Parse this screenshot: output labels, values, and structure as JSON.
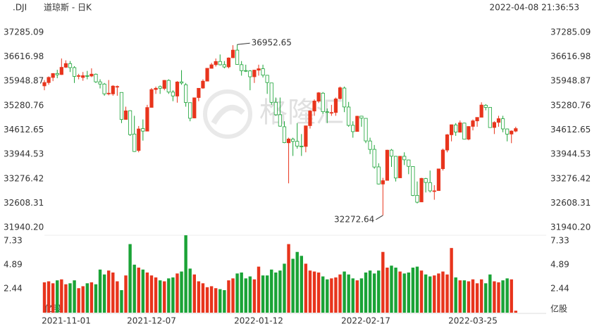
{
  "symbol": ".DJI",
  "timestamp": "2022-04-08 21:36:53",
  "chart_data": {
    "type": "candlestick",
    "title": "道琼斯 - 日K",
    "watermark": "格隆汇",
    "up_color": "#e8341c",
    "down_color": "#1aa336",
    "grid": false,
    "ylim": [
      31940.2,
      37285.09
    ],
    "yticks": [
      {
        "value": 31940.2,
        "label": "31940.20"
      },
      32608.31,
      33276.42,
      33944.53,
      34612.65,
      35280.76,
      35948.87,
      36616.98,
      37285.09
    ],
    "categories": [
      "2021-11-01",
      null,
      null,
      null,
      null,
      null,
      null,
      null,
      null,
      null,
      null,
      null,
      null,
      null,
      null,
      null,
      null,
      null,
      null,
      null,
      null,
      null,
      null,
      null,
      null,
      "2021-12-07",
      null,
      null,
      null,
      null,
      null,
      null,
      null,
      null,
      null,
      null,
      null,
      null,
      null,
      null,
      null,
      null,
      null,
      null,
      null,
      null,
      null,
      null,
      null,
      null,
      "2022-01-12",
      null,
      null,
      null,
      null,
      null,
      null,
      null,
      null,
      null,
      null,
      null,
      null,
      null,
      null,
      null,
      null,
      null,
      null,
      null,
      null,
      null,
      null,
      null,
      null,
      "2022-02-17",
      null,
      null,
      null,
      null,
      null,
      null,
      null,
      null,
      null,
      null,
      null,
      null,
      null,
      null,
      null,
      null,
      null,
      null,
      null,
      null,
      null,
      null,
      null,
      null,
      "2022-03-25",
      null,
      null,
      null,
      null,
      null,
      null,
      null,
      null,
      null,
      null
    ],
    "ohlc": [
      [
        35820,
        35980,
        35700,
        35913
      ],
      [
        35910,
        36080,
        35850,
        36053
      ],
      [
        36050,
        36170,
        35950,
        36158
      ],
      [
        36160,
        36260,
        36030,
        36124
      ],
      [
        36130,
        36570,
        36120,
        36328
      ],
      [
        36330,
        36520,
        36310,
        36432
      ],
      [
        36430,
        36500,
        36200,
        36320
      ],
      [
        36320,
        36360,
        35900,
        36079
      ],
      [
        36080,
        36150,
        36000,
        36100
      ],
      [
        36050,
        36200,
        35960,
        36100
      ],
      [
        36100,
        36230,
        36000,
        36087
      ],
      [
        36090,
        36300,
        36060,
        36142
      ],
      [
        36140,
        36160,
        35900,
        35931
      ],
      [
        35930,
        36000,
        35750,
        35871
      ],
      [
        35870,
        35900,
        35550,
        35602
      ],
      [
        35600,
        35980,
        35560,
        35620
      ],
      [
        35600,
        35840,
        35550,
        35814
      ],
      [
        35800,
        35830,
        35550,
        35804
      ],
      [
        35640,
        35640,
        34800,
        34899
      ],
      [
        34900,
        35250,
        34900,
        35136
      ],
      [
        35140,
        35150,
        34450,
        34484
      ],
      [
        34500,
        35000,
        34010,
        34022
      ],
      [
        34050,
        34720,
        34000,
        34640
      ],
      [
        34650,
        34900,
        34320,
        34580
      ],
      [
        34580,
        35300,
        34580,
        35227
      ],
      [
        35230,
        35760,
        35230,
        35719
      ],
      [
        35720,
        35800,
        35600,
        35754
      ],
      [
        35800,
        35830,
        35600,
        35754
      ],
      [
        35750,
        35980,
        35700,
        35971
      ],
      [
        35970,
        36000,
        35600,
        35650
      ],
      [
        35650,
        35700,
        35400,
        35544
      ],
      [
        35540,
        35950,
        35360,
        35927
      ],
      [
        35930,
        36250,
        35850,
        35898
      ],
      [
        35850,
        35900,
        35250,
        35365
      ],
      [
        35360,
        35360,
        34850,
        34932
      ],
      [
        34940,
        35500,
        34930,
        35493
      ],
      [
        35500,
        35760,
        35400,
        35754
      ],
      [
        35760,
        36000,
        35740,
        35950
      ],
      [
        35950,
        36300,
        35950,
        36302
      ],
      [
        36300,
        36450,
        36300,
        36398
      ],
      [
        36400,
        36570,
        36350,
        36488
      ],
      [
        36490,
        36680,
        36380,
        36398
      ],
      [
        36400,
        36500,
        36300,
        36338
      ],
      [
        36340,
        36600,
        36300,
        36585
      ],
      [
        36590,
        36935,
        36590,
        36800
      ],
      [
        36800,
        36952.65,
        36400,
        36408
      ],
      [
        36400,
        36500,
        36100,
        36236
      ],
      [
        36240,
        36400,
        36200,
        36232
      ],
      [
        36230,
        36250,
        35700,
        36069
      ],
      [
        36070,
        36260,
        35900,
        36252
      ],
      [
        36250,
        36400,
        36100,
        36290
      ],
      [
        36290,
        36400,
        36050,
        36114
      ],
      [
        36110,
        36120,
        35600,
        35912
      ],
      [
        35900,
        35900,
        35300,
        35369
      ],
      [
        35370,
        35500,
        35000,
        35029
      ],
      [
        35030,
        35500,
        34700,
        34716
      ],
      [
        34700,
        34850,
        34250,
        34265
      ],
      [
        34260,
        34400,
        33150,
        34365
      ],
      [
        34360,
        34400,
        33900,
        34298
      ],
      [
        34300,
        34800,
        34100,
        34168
      ],
      [
        34170,
        34500,
        33900,
        34160
      ],
      [
        34160,
        34730,
        34000,
        34725
      ],
      [
        34730,
        35150,
        34650,
        35132
      ],
      [
        35130,
        35450,
        35000,
        35405
      ],
      [
        35400,
        35650,
        35350,
        35630
      ],
      [
        35620,
        35650,
        35050,
        35112
      ],
      [
        35110,
        35200,
        34800,
        35090
      ],
      [
        35090,
        35300,
        35000,
        35091
      ],
      [
        35090,
        35500,
        35000,
        35463
      ],
      [
        35470,
        35800,
        35450,
        35768
      ],
      [
        35760,
        35800,
        35100,
        35242
      ],
      [
        35240,
        35380,
        34700,
        34738
      ],
      [
        34740,
        34850,
        34400,
        34566
      ],
      [
        34570,
        35000,
        34570,
        34989
      ],
      [
        34990,
        35000,
        34700,
        34935
      ],
      [
        34930,
        34930,
        34250,
        34312
      ],
      [
        34310,
        34400,
        33950,
        34079
      ],
      [
        34080,
        34200,
        33550,
        33597
      ],
      [
        33600,
        33700,
        33120,
        33132
      ],
      [
        33130,
        33300,
        32272.64,
        33224
      ],
      [
        33230,
        34070,
        33230,
        34059
      ],
      [
        34060,
        34090,
        33600,
        33893
      ],
      [
        33890,
        33900,
        33200,
        33295
      ],
      [
        33300,
        33900,
        33300,
        33891
      ],
      [
        33890,
        34000,
        33650,
        33795
      ],
      [
        33790,
        33800,
        33400,
        33615
      ],
      [
        33610,
        33620,
        32800,
        32818
      ],
      [
        32820,
        33200,
        32600,
        32633
      ],
      [
        32640,
        33300,
        32640,
        33286
      ],
      [
        33280,
        33300,
        32900,
        33174
      ],
      [
        33170,
        33500,
        32900,
        32944
      ],
      [
        32940,
        33100,
        32700,
        32945
      ],
      [
        32950,
        33550,
        32950,
        33545
      ],
      [
        33550,
        34100,
        33500,
        34063
      ],
      [
        34060,
        34500,
        34000,
        34481
      ],
      [
        34480,
        34760,
        34300,
        34755
      ],
      [
        34750,
        34800,
        34450,
        34553
      ],
      [
        34550,
        34870,
        34550,
        34808
      ],
      [
        34800,
        34810,
        34350,
        34359
      ],
      [
        34360,
        34710,
        34330,
        34708
      ],
      [
        34710,
        34900,
        34600,
        34862
      ],
      [
        34860,
        34960,
        34700,
        34956
      ],
      [
        34960,
        35370,
        34960,
        35295
      ],
      [
        35290,
        35320,
        35150,
        35229
      ],
      [
        35230,
        35230,
        34670,
        34678
      ],
      [
        34680,
        34850,
        34500,
        34818
      ],
      [
        34820,
        35000,
        34700,
        34922
      ],
      [
        34920,
        35000,
        34550,
        34641
      ],
      [
        34640,
        34650,
        34300,
        34497
      ],
      [
        34500,
        34600,
        34250,
        34583
      ],
      [
        34580,
        34700,
        34550,
        34650
      ]
    ],
    "volume": {
      "unit": "亿股",
      "ylim": [
        0,
        7.33
      ],
      "yticks": [
        2.44,
        4.89,
        7.33
      ],
      "values": [
        3.1,
        3.2,
        3.0,
        3.3,
        3.4,
        2.9,
        3.0,
        3.3,
        2.5,
        2.7,
        3.0,
        3.1,
        2.9,
        4.4,
        3.9,
        4.3,
        4.1,
        3.2,
        2.3,
        3.8,
        7.0,
        4.9,
        4.6,
        4.4,
        4.1,
        3.8,
        3.6,
        3.3,
        3.2,
        3.5,
        3.6,
        4.0,
        4.2,
        7.9,
        4.5,
        3.9,
        3.2,
        3.0,
        2.6,
        2.7,
        2.5,
        2.4,
        2.3,
        3.3,
        3.5,
        4.0,
        4.1,
        3.5,
        3.7,
        3.4,
        4.7,
        3.8,
        3.8,
        4.4,
        4.1,
        4.3,
        5.0,
        7.0,
        5.5,
        6.2,
        5.8,
        5.0,
        4.3,
        4.2,
        4.1,
        3.7,
        3.4,
        3.5,
        3.6,
        3.9,
        4.2,
        3.9,
        3.5,
        3.3,
        3.5,
        4.1,
        4.3,
        4.0,
        4.3,
        6.2,
        4.6,
        4.8,
        4.6,
        4.2,
        4.0,
        4.1,
        4.6,
        4.7,
        4.3,
        3.9,
        3.7,
        3.8,
        4.0,
        4.2,
        3.9,
        6.6,
        3.6,
        3.3,
        3.3,
        3.2,
        3.4,
        3.0,
        3.4,
        3.0,
        3.9,
        3.2,
        3.1,
        3.3,
        3.5,
        3.4,
        0.2
      ]
    }
  }
}
